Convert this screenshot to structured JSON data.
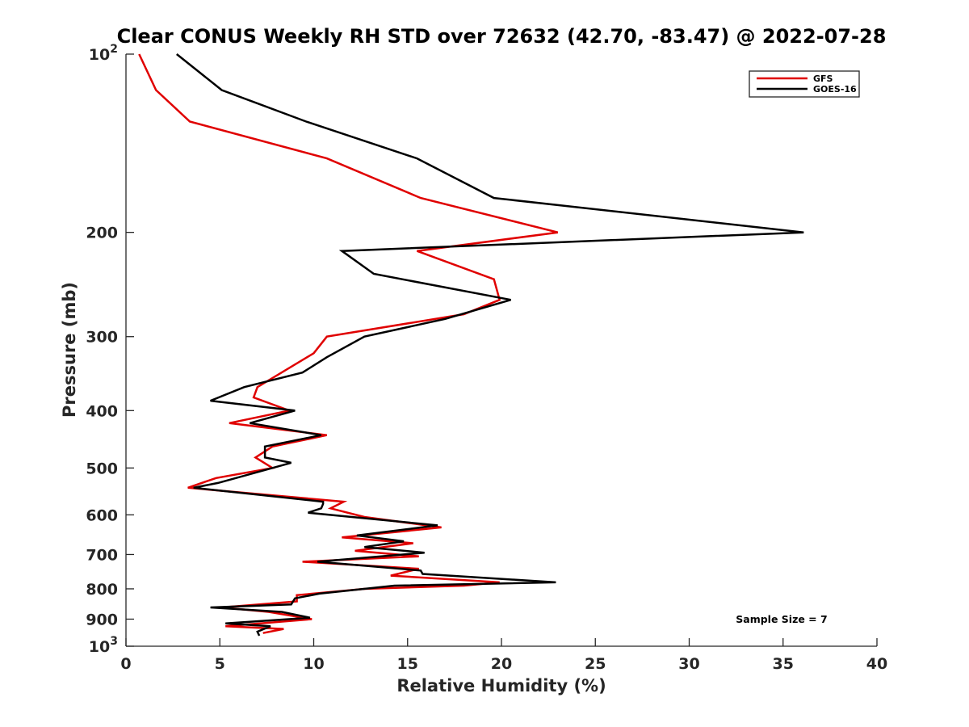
{
  "chart_data": {
    "type": "line",
    "title": "Clear CONUS Weekly RH STD over 72632 (42.70, -83.47) @ 2022-07-28",
    "xlabel": "Relative Humidity (%)",
    "ylabel": "Pressure (mb)",
    "xlim": [
      0,
      40
    ],
    "ylim": [
      100,
      1000
    ],
    "yscale": "log",
    "y_reversed": true,
    "grid": false,
    "legend_position": "top-right",
    "x_ticks": [
      0,
      5,
      10,
      15,
      20,
      25,
      30,
      35,
      40
    ],
    "y_ticks": [
      {
        "value": 100,
        "label": "10",
        "exp": "2"
      },
      {
        "value": 200,
        "label": "200"
      },
      {
        "value": 300,
        "label": "300"
      },
      {
        "value": 400,
        "label": "400"
      },
      {
        "value": 500,
        "label": "500"
      },
      {
        "value": 600,
        "label": "600"
      },
      {
        "value": 700,
        "label": "700"
      },
      {
        "value": 800,
        "label": "800"
      },
      {
        "value": 900,
        "label": "900"
      },
      {
        "value": 1000,
        "label": "10",
        "exp": "3"
      }
    ],
    "annotation": "Sample Size = 7",
    "series": [
      {
        "name": "GFS",
        "color": "#e00000",
        "points": [
          [
            0.7,
            100
          ],
          [
            1.6,
            115
          ],
          [
            3.4,
            130
          ],
          [
            10.7,
            150
          ],
          [
            15.7,
            175
          ],
          [
            23.0,
            200
          ],
          [
            15.5,
            215
          ],
          [
            19.6,
            240
          ],
          [
            19.9,
            260
          ],
          [
            18.0,
            275
          ],
          [
            10.7,
            300
          ],
          [
            10.0,
            320
          ],
          [
            7.0,
            365
          ],
          [
            6.8,
            380
          ],
          [
            8.7,
            400
          ],
          [
            5.5,
            420
          ],
          [
            10.7,
            440
          ],
          [
            7.8,
            460
          ],
          [
            6.9,
            480
          ],
          [
            7.8,
            500
          ],
          [
            4.8,
            520
          ],
          [
            3.3,
            540
          ],
          [
            11.6,
            570
          ],
          [
            10.9,
            585
          ],
          [
            12.7,
            605
          ],
          [
            16.8,
            630
          ],
          [
            11.5,
            655
          ],
          [
            15.3,
            670
          ],
          [
            12.2,
            690
          ],
          [
            15.6,
            705
          ],
          [
            9.4,
            720
          ],
          [
            15.6,
            740
          ],
          [
            14.1,
            760
          ],
          [
            19.9,
            780
          ],
          [
            18.0,
            790
          ],
          [
            12.7,
            800
          ],
          [
            9.1,
            820
          ],
          [
            9.1,
            840
          ],
          [
            5.1,
            860
          ],
          [
            7.6,
            875
          ],
          [
            9.9,
            900
          ],
          [
            5.3,
            925
          ],
          [
            8.4,
            935
          ],
          [
            7.3,
            950
          ]
        ]
      },
      {
        "name": "GOES-16",
        "color": "#000000",
        "points": [
          [
            2.7,
            100
          ],
          [
            5.1,
            115
          ],
          [
            9.6,
            130
          ],
          [
            15.5,
            150
          ],
          [
            19.6,
            175
          ],
          [
            36.1,
            200
          ],
          [
            11.5,
            215
          ],
          [
            13.2,
            235
          ],
          [
            20.5,
            260
          ],
          [
            17.0,
            280
          ],
          [
            12.7,
            300
          ],
          [
            10.7,
            325
          ],
          [
            9.4,
            345
          ],
          [
            6.3,
            365
          ],
          [
            4.5,
            385
          ],
          [
            9.0,
            400
          ],
          [
            6.6,
            420
          ],
          [
            10.4,
            440
          ],
          [
            7.4,
            460
          ],
          [
            7.4,
            480
          ],
          [
            8.8,
            490
          ],
          [
            4.9,
            530
          ],
          [
            3.6,
            540
          ],
          [
            10.5,
            570
          ],
          [
            10.5,
            575
          ],
          [
            10.4,
            585
          ],
          [
            9.7,
            595
          ],
          [
            16.6,
            625
          ],
          [
            12.3,
            650
          ],
          [
            14.8,
            665
          ],
          [
            12.7,
            680
          ],
          [
            15.9,
            695
          ],
          [
            10.2,
            720
          ],
          [
            15.7,
            745
          ],
          [
            15.8,
            755
          ],
          [
            22.9,
            780
          ],
          [
            14.3,
            790
          ],
          [
            10.3,
            815
          ],
          [
            9.0,
            830
          ],
          [
            8.8,
            850
          ],
          [
            4.5,
            860
          ],
          [
            8.3,
            875
          ],
          [
            9.8,
            895
          ],
          [
            5.3,
            915
          ],
          [
            7.7,
            925
          ],
          [
            7.0,
            945
          ],
          [
            7.1,
            960
          ]
        ]
      }
    ]
  }
}
